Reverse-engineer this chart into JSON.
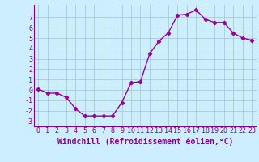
{
  "x": [
    0,
    1,
    2,
    3,
    4,
    5,
    6,
    7,
    8,
    9,
    10,
    11,
    12,
    13,
    14,
    15,
    16,
    17,
    18,
    19,
    20,
    21,
    22,
    23
  ],
  "y": [
    0.1,
    -0.3,
    -0.3,
    -0.7,
    -1.8,
    -2.5,
    -2.5,
    -2.5,
    -2.5,
    -1.2,
    0.7,
    0.8,
    3.5,
    4.7,
    5.5,
    7.2,
    7.3,
    7.7,
    6.8,
    6.5,
    6.5,
    5.5,
    5.0,
    4.8
  ],
  "line_color": "#990099",
  "marker": "D",
  "marker_size": 2.2,
  "bg_color": "#cceeff",
  "grid_color": "#aacccc",
  "tick_color": "#880088",
  "label_color": "#880088",
  "xlabel": "Windchill (Refroidissement éolien,°C)",
  "ylim": [
    -3.5,
    8.2
  ],
  "xlim": [
    -0.5,
    23.5
  ],
  "yticks": [
    -3,
    -2,
    -1,
    0,
    1,
    2,
    3,
    4,
    5,
    6,
    7
  ],
  "xticks": [
    0,
    1,
    2,
    3,
    4,
    5,
    6,
    7,
    8,
    9,
    10,
    11,
    12,
    13,
    14,
    15,
    16,
    17,
    18,
    19,
    20,
    21,
    22,
    23
  ],
  "xlabel_fontsize": 7.0,
  "tick_fontsize": 6.0,
  "linewidth": 1.0
}
